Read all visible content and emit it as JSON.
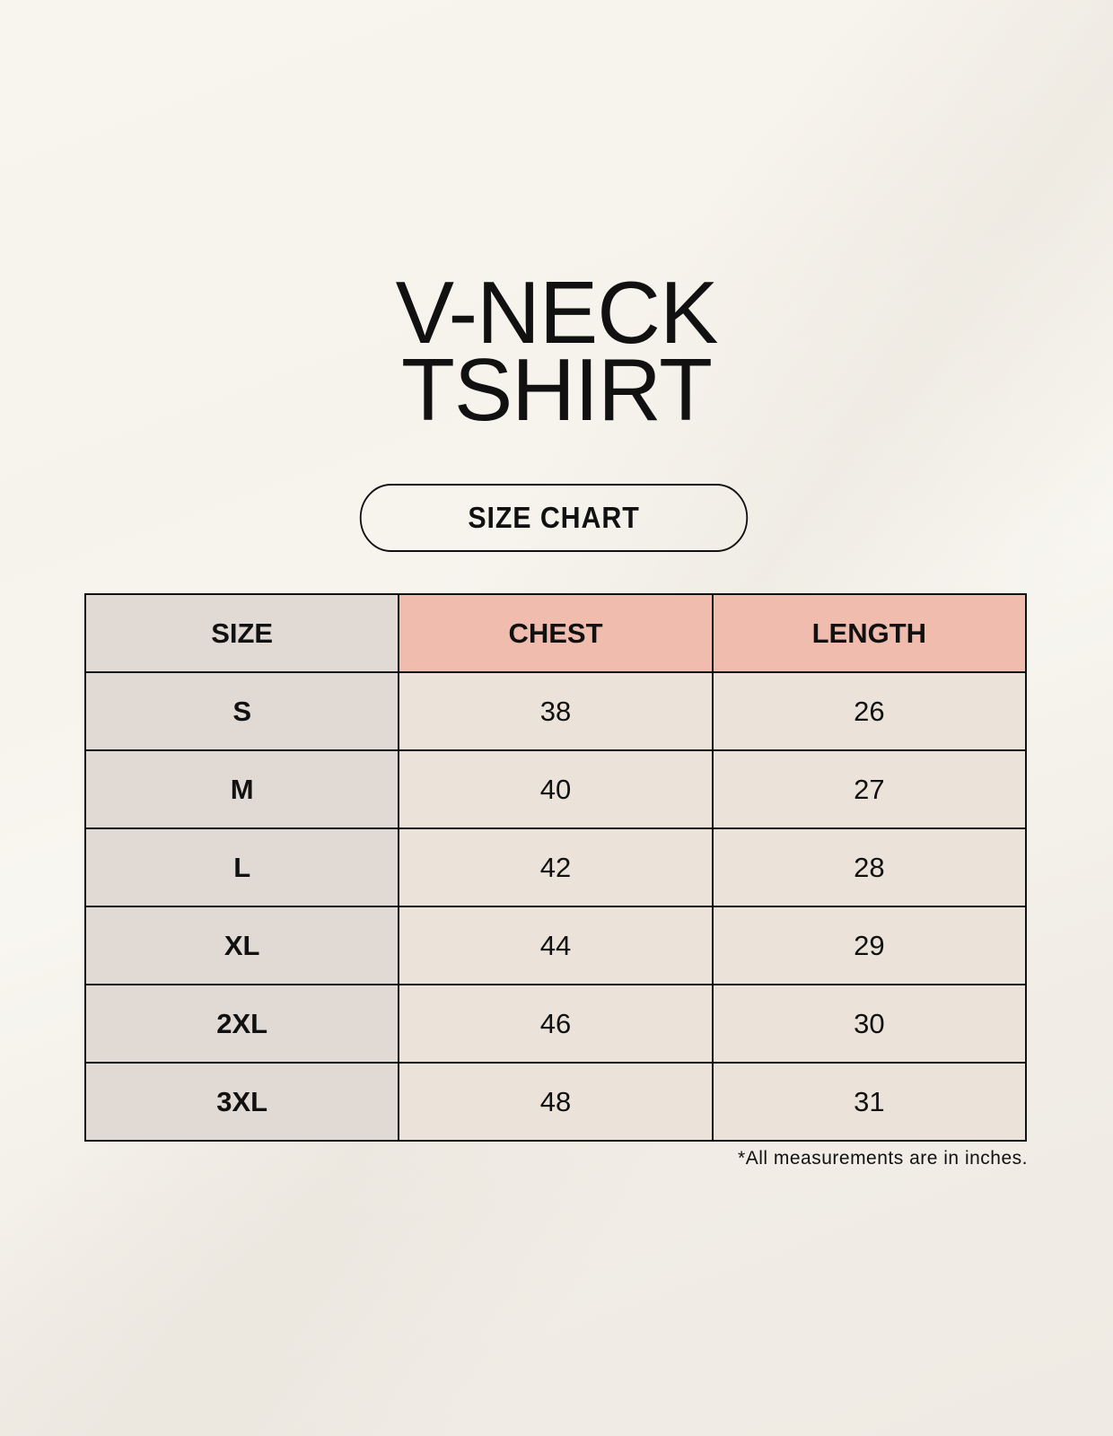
{
  "title": {
    "line1": "V-NECK",
    "line2": "TSHIRT"
  },
  "badge": "SIZE CHART",
  "colors": {
    "size_column": "#e1d9d4",
    "header_accent": "#efbcae",
    "value_cells": "#ebe3d9"
  },
  "table": {
    "headers": [
      "SIZE",
      "CHEST",
      "LENGTH"
    ],
    "rows": [
      [
        "S",
        "38",
        "26"
      ],
      [
        "M",
        "40",
        "27"
      ],
      [
        "L",
        "42",
        "28"
      ],
      [
        "XL",
        "44",
        "29"
      ],
      [
        "2XL",
        "46",
        "30"
      ],
      [
        "3XL",
        "48",
        "31"
      ]
    ]
  },
  "footnote": "*All measurements are in inches."
}
